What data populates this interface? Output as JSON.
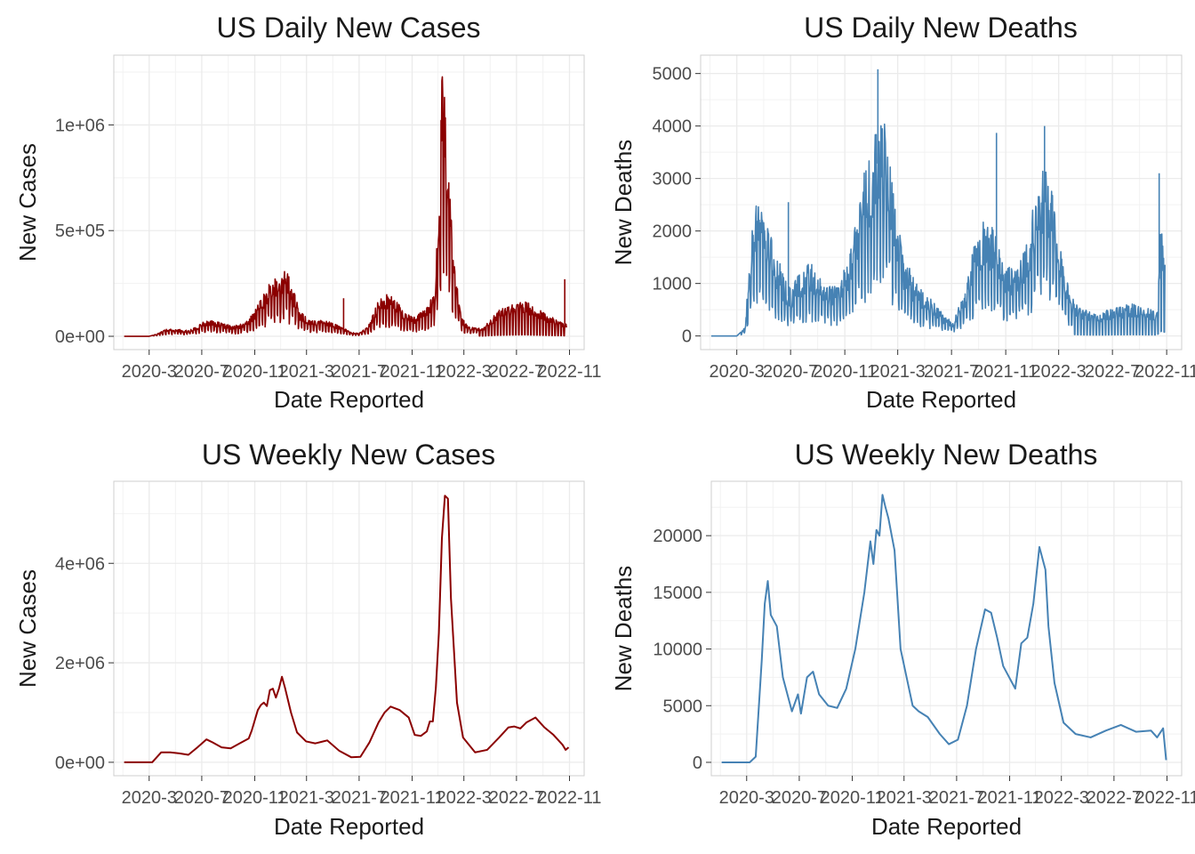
{
  "colors": {
    "cases": "#8b0000",
    "deaths": "#4682b4",
    "grid": "#ebebeb",
    "panel_border": "#cfcfcf"
  },
  "x_axis": {
    "label": "Date Reported",
    "tick_labels": [
      "2020-3",
      "2020-7",
      "2020-11",
      "2021-3",
      "2021-7",
      "2021-11",
      "2022-3",
      "2022-7",
      "2022-11"
    ],
    "tick_dates": [
      "2020-03-01",
      "2020-07-01",
      "2020-11-01",
      "2021-03-01",
      "2021-07-01",
      "2021-11-01",
      "2022-03-01",
      "2022-07-01",
      "2022-11-01"
    ],
    "range": [
      "2019-12-10",
      "2022-12-05"
    ]
  },
  "chart_data": [
    {
      "id": "daily_cases",
      "type": "line",
      "title": "US Daily New Cases",
      "xlabel": "Date Reported",
      "ylabel": "New Cases",
      "y_ticks": [
        0,
        500000,
        1000000
      ],
      "y_tick_labels": [
        "0e+00",
        "5e+05",
        "1e+06"
      ],
      "ylim": [
        -63000,
        1330000
      ],
      "color": "#8b0000",
      "daily_noise": true,
      "series": [
        {
          "x": [
            "2020-01-03",
            "2020-03-01",
            "2020-03-20",
            "2020-04-10",
            "2020-05-01",
            "2020-06-01",
            "2020-06-20",
            "2020-07-01",
            "2020-07-20",
            "2020-08-20",
            "2020-09-15",
            "2020-10-15",
            "2020-11-01",
            "2020-11-20",
            "2020-12-10",
            "2021-01-05",
            "2021-01-10",
            "2021-01-25",
            "2021-02-15",
            "2021-03-15",
            "2021-04-10",
            "2021-05-15",
            "2021-06-15",
            "2021-07-01",
            "2021-07-20",
            "2021-08-15",
            "2021-09-01",
            "2021-09-20",
            "2021-10-15",
            "2021-11-01",
            "2021-11-20",
            "2021-12-10",
            "2021-12-25",
            "2022-01-05",
            "2022-01-10",
            "2022-01-15",
            "2022-01-25",
            "2022-02-10",
            "2022-02-25",
            "2022-03-15",
            "2022-04-15",
            "2022-05-15",
            "2022-06-15",
            "2022-07-01",
            "2022-07-20",
            "2022-08-15",
            "2022-09-15",
            "2022-10-15",
            "2022-10-25"
          ],
          "y": [
            0,
            0,
            10000,
            30000,
            28000,
            22000,
            40000,
            60000,
            66000,
            48000,
            40000,
            60000,
            100000,
            160000,
            220000,
            230000,
            290000,
            200000,
            95000,
            60000,
            70000,
            40000,
            15000,
            12000,
            35000,
            140000,
            165000,
            150000,
            95000,
            75000,
            90000,
            120000,
            210000,
            700000,
            1260000,
            1000000,
            620000,
            230000,
            70000,
            35000,
            30000,
            95000,
            120000,
            130000,
            140000,
            110000,
            80000,
            55000,
            50000
          ]
        }
      ],
      "annotations": [
        {
          "x": "2021-05-26",
          "y": 180000
        },
        {
          "x": "2022-10-21",
          "y": 270000
        }
      ]
    },
    {
      "id": "daily_deaths",
      "type": "line",
      "title": "US Daily New Deaths",
      "xlabel": "Date Reported",
      "ylabel": "New Deaths",
      "y_ticks": [
        0,
        1000,
        2000,
        3000,
        4000,
        5000
      ],
      "y_tick_labels": [
        "0",
        "1000",
        "2000",
        "3000",
        "4000",
        "5000"
      ],
      "ylim": [
        -260,
        5350
      ],
      "color": "#4682b4",
      "daily_noise": true,
      "series": [
        {
          "x": [
            "2020-01-03",
            "2020-03-01",
            "2020-03-20",
            "2020-04-05",
            "2020-04-20",
            "2020-05-15",
            "2020-06-15",
            "2020-07-01",
            "2020-07-25",
            "2020-08-15",
            "2020-09-15",
            "2020-10-15",
            "2020-11-15",
            "2020-12-15",
            "2021-01-12",
            "2021-02-01",
            "2021-02-20",
            "2021-03-15",
            "2021-04-15",
            "2021-05-15",
            "2021-06-15",
            "2021-07-05",
            "2021-08-01",
            "2021-08-25",
            "2021-09-15",
            "2021-10-15",
            "2021-11-01",
            "2021-11-20",
            "2021-12-15",
            "2022-01-10",
            "2022-01-25",
            "2022-02-10",
            "2022-03-01",
            "2022-03-25",
            "2022-04-15",
            "2022-05-15",
            "2022-06-15",
            "2022-07-15",
            "2022-08-15",
            "2022-09-15",
            "2022-10-10",
            "2022-10-20",
            "2022-10-28"
          ],
          "y": [
            0,
            0,
            150,
            1800,
            2200,
            1600,
            900,
            700,
            1000,
            1100,
            800,
            750,
            1300,
            2500,
            3300,
            3200,
            2200,
            1200,
            750,
            550,
            300,
            230,
            700,
            1500,
            1800,
            1500,
            1050,
            1050,
            1300,
            2200,
            2700,
            2400,
            1500,
            650,
            450,
            350,
            380,
            450,
            480,
            420,
            380,
            1800,
            1400
          ]
        }
      ],
      "annotations": [
        {
          "x": "2020-06-26",
          "y": 2550
        },
        {
          "x": "2021-01-15",
          "y": 5080
        },
        {
          "x": "2021-10-11",
          "y": 3870
        },
        {
          "x": "2022-01-28",
          "y": 4000
        },
        {
          "x": "2022-10-15",
          "y": 3100
        }
      ]
    },
    {
      "id": "weekly_cases",
      "type": "line",
      "title": "US Weekly New Cases",
      "xlabel": "Date Reported",
      "ylabel": "New Cases",
      "y_ticks": [
        0,
        2000000,
        4000000
      ],
      "y_tick_labels": [
        "0e+00",
        "2e+06",
        "4e+06"
      ],
      "ylim": [
        -270000,
        5650000
      ],
      "color": "#8b0000",
      "daily_noise": false,
      "series": [
        {
          "x": [
            "2020-01-03",
            "2020-03-08",
            "2020-03-29",
            "2020-04-19",
            "2020-05-10",
            "2020-05-31",
            "2020-06-21",
            "2020-07-12",
            "2020-07-26",
            "2020-08-16",
            "2020-09-06",
            "2020-09-27",
            "2020-10-18",
            "2020-10-25",
            "2020-11-08",
            "2020-11-15",
            "2020-11-22",
            "2020-11-29",
            "2020-12-06",
            "2020-12-13",
            "2020-12-20",
            "2020-12-27",
            "2021-01-03",
            "2021-01-10",
            "2021-01-17",
            "2021-01-24",
            "2021-02-07",
            "2021-02-28",
            "2021-03-21",
            "2021-04-04",
            "2021-04-18",
            "2021-05-16",
            "2021-06-13",
            "2021-07-04",
            "2021-07-25",
            "2021-08-15",
            "2021-08-29",
            "2021-09-12",
            "2021-10-03",
            "2021-10-24",
            "2021-11-07",
            "2021-11-21",
            "2021-12-05",
            "2021-12-12",
            "2021-12-19",
            "2021-12-26",
            "2022-01-02",
            "2022-01-09",
            "2022-01-16",
            "2022-01-23",
            "2022-01-30",
            "2022-02-13",
            "2022-02-27",
            "2022-03-27",
            "2022-04-24",
            "2022-05-22",
            "2022-06-12",
            "2022-06-26",
            "2022-07-10",
            "2022-07-24",
            "2022-08-14",
            "2022-09-04",
            "2022-09-25",
            "2022-10-16",
            "2022-10-23",
            "2022-10-30"
          ],
          "y": [
            0,
            0,
            200000,
            200000,
            180000,
            150000,
            300000,
            460000,
            400000,
            300000,
            280000,
            380000,
            480000,
            640000,
            1050000,
            1150000,
            1200000,
            1130000,
            1450000,
            1480000,
            1300000,
            1480000,
            1720000,
            1500000,
            1250000,
            1000000,
            600000,
            420000,
            380000,
            410000,
            440000,
            230000,
            100000,
            110000,
            400000,
            800000,
            1000000,
            1120000,
            1050000,
            900000,
            550000,
            530000,
            620000,
            820000,
            820000,
            1500000,
            2600000,
            4500000,
            5360000,
            5300000,
            3300000,
            1200000,
            500000,
            200000,
            250000,
            500000,
            700000,
            720000,
            680000,
            800000,
            900000,
            700000,
            550000,
            350000,
            250000,
            300000
          ]
        }
      ]
    },
    {
      "id": "weekly_deaths",
      "type": "line",
      "title": "US Weekly New Deaths",
      "xlabel": "Date Reported",
      "ylabel": "New Deaths",
      "y_ticks": [
        0,
        5000,
        10000,
        15000,
        20000
      ],
      "y_tick_labels": [
        "0",
        "5000",
        "10000",
        "15000",
        "20000"
      ],
      "ylim": [
        -1180,
        24800
      ],
      "color": "#4682b4",
      "daily_noise": false,
      "series": [
        {
          "x": [
            "2020-01-03",
            "2020-03-08",
            "2020-03-22",
            "2020-04-05",
            "2020-04-12",
            "2020-04-19",
            "2020-04-26",
            "2020-05-10",
            "2020-05-24",
            "2020-06-14",
            "2020-06-28",
            "2020-07-05",
            "2020-07-19",
            "2020-08-02",
            "2020-08-16",
            "2020-09-06",
            "2020-09-27",
            "2020-10-18",
            "2020-11-08",
            "2020-11-29",
            "2020-12-13",
            "2020-12-20",
            "2020-12-27",
            "2021-01-03",
            "2021-01-10",
            "2021-01-17",
            "2021-01-24",
            "2021-02-07",
            "2021-02-21",
            "2021-03-07",
            "2021-03-21",
            "2021-04-04",
            "2021-04-25",
            "2021-05-23",
            "2021-06-13",
            "2021-07-04",
            "2021-07-25",
            "2021-08-15",
            "2021-09-05",
            "2021-09-19",
            "2021-10-03",
            "2021-10-17",
            "2021-10-31",
            "2021-11-14",
            "2021-11-28",
            "2021-12-12",
            "2021-12-26",
            "2022-01-09",
            "2022-01-23",
            "2022-01-30",
            "2022-02-13",
            "2022-03-06",
            "2022-04-03",
            "2022-05-08",
            "2022-06-12",
            "2022-07-17",
            "2022-08-21",
            "2022-09-25",
            "2022-10-09",
            "2022-10-23",
            "2022-10-30"
          ],
          "y": [
            0,
            0,
            500,
            9000,
            14000,
            16000,
            13000,
            12000,
            7500,
            4500,
            6000,
            4300,
            7500,
            8000,
            6000,
            5000,
            4800,
            6500,
            10000,
            15000,
            19500,
            17500,
            20500,
            20000,
            23600,
            22500,
            21500,
            18700,
            10000,
            7500,
            5000,
            4500,
            4000,
            2500,
            1600,
            2000,
            5000,
            10000,
            13500,
            13200,
            11000,
            8500,
            7500,
            6500,
            10500,
            11000,
            14000,
            19000,
            17000,
            12000,
            7000,
            3500,
            2500,
            2200,
            2800,
            3300,
            2700,
            2800,
            2200,
            3000,
            200
          ]
        }
      ]
    }
  ]
}
